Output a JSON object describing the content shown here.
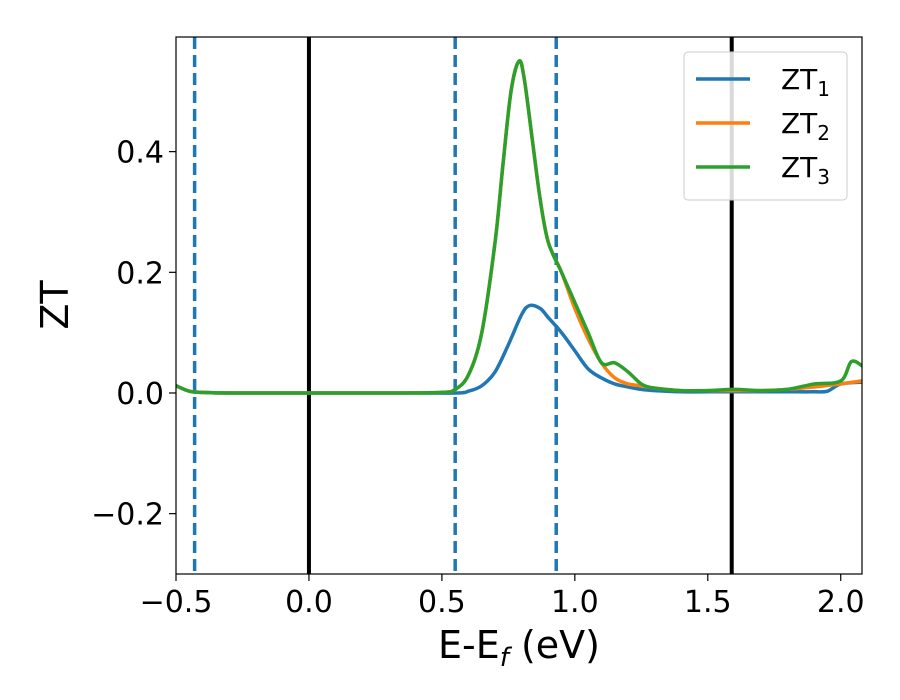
{
  "chart_data": {
    "type": "line",
    "title": "",
    "xlabel": {
      "main": "E-E",
      "sub": "f",
      "unit": " (eV)"
    },
    "ylabel": "ZT",
    "xlim": [
      -0.5,
      2.08
    ],
    "ylim": [
      -0.3,
      0.59
    ],
    "xticks": [
      -0.5,
      0.0,
      0.5,
      1.0,
      1.5,
      2.0
    ],
    "xtick_labels": [
      "−0.5",
      "0.0",
      "0.5",
      "1.0",
      "1.5",
      "2.0"
    ],
    "yticks": [
      -0.2,
      0.0,
      0.2,
      0.4
    ],
    "ytick_labels": [
      "−0.2",
      "0.0",
      "0.2",
      "0.4"
    ],
    "grid": false,
    "legend_position": "top-right",
    "vlines_solid": [
      0.0,
      1.59
    ],
    "vlines_dashed": [
      -0.43,
      0.55,
      0.93
    ],
    "vline_solid_color": "#000000",
    "vline_dashed_color": "#1f77b4",
    "series": [
      {
        "name": "ZT",
        "sub": "1",
        "color": "#1f77b4",
        "x": [
          -0.5,
          -0.45,
          -0.4,
          -0.3,
          0.0,
          0.3,
          0.55,
          0.6,
          0.65,
          0.7,
          0.75,
          0.8,
          0.83,
          0.87,
          0.9,
          0.95,
          1.0,
          1.05,
          1.1,
          1.15,
          1.2,
          1.25,
          1.3,
          1.4,
          1.5,
          1.6,
          1.7,
          1.8,
          1.9,
          1.95,
          2.0,
          2.08
        ],
        "y": [
          0.012,
          0.003,
          0.001,
          0.0,
          0.0,
          0.0,
          0.0,
          0.003,
          0.012,
          0.035,
          0.08,
          0.13,
          0.145,
          0.14,
          0.125,
          0.1,
          0.07,
          0.04,
          0.025,
          0.015,
          0.01,
          0.006,
          0.004,
          0.002,
          0.002,
          0.002,
          0.002,
          0.002,
          0.002,
          0.003,
          0.015,
          0.018
        ]
      },
      {
        "name": "ZT",
        "sub": "2",
        "color": "#ff7f0e",
        "x": [
          -0.5,
          -0.45,
          -0.4,
          -0.3,
          0.0,
          0.3,
          0.5,
          0.55,
          0.6,
          0.65,
          0.7,
          0.73,
          0.76,
          0.79,
          0.81,
          0.84,
          0.87,
          0.9,
          0.95,
          1.0,
          1.05,
          1.1,
          1.15,
          1.2,
          1.25,
          1.3,
          1.4,
          1.5,
          1.6,
          1.7,
          1.8,
          1.9,
          2.0,
          2.08
        ],
        "y": [
          0.012,
          0.003,
          0.001,
          0.0,
          0.0,
          0.0,
          0.001,
          0.006,
          0.03,
          0.1,
          0.25,
          0.38,
          0.5,
          0.55,
          0.52,
          0.42,
          0.32,
          0.25,
          0.2,
          0.14,
          0.09,
          0.05,
          0.025,
          0.015,
          0.012,
          0.008,
          0.004,
          0.004,
          0.004,
          0.004,
          0.006,
          0.01,
          0.015,
          0.02
        ]
      },
      {
        "name": "ZT",
        "sub": "3",
        "color": "#2ca02c",
        "x": [
          -0.5,
          -0.45,
          -0.4,
          -0.3,
          0.0,
          0.3,
          0.5,
          0.55,
          0.6,
          0.65,
          0.7,
          0.73,
          0.76,
          0.79,
          0.81,
          0.84,
          0.87,
          0.9,
          0.95,
          1.0,
          1.05,
          1.1,
          1.15,
          1.2,
          1.25,
          1.3,
          1.4,
          1.5,
          1.6,
          1.7,
          1.8,
          1.9,
          2.0,
          2.04,
          2.08
        ],
        "y": [
          0.012,
          0.003,
          0.001,
          0.0,
          0.0,
          0.0,
          0.001,
          0.006,
          0.03,
          0.1,
          0.25,
          0.38,
          0.5,
          0.55,
          0.52,
          0.42,
          0.32,
          0.25,
          0.2,
          0.15,
          0.1,
          0.05,
          0.05,
          0.035,
          0.015,
          0.008,
          0.004,
          0.004,
          0.006,
          0.004,
          0.006,
          0.015,
          0.02,
          0.052,
          0.045
        ]
      }
    ]
  }
}
